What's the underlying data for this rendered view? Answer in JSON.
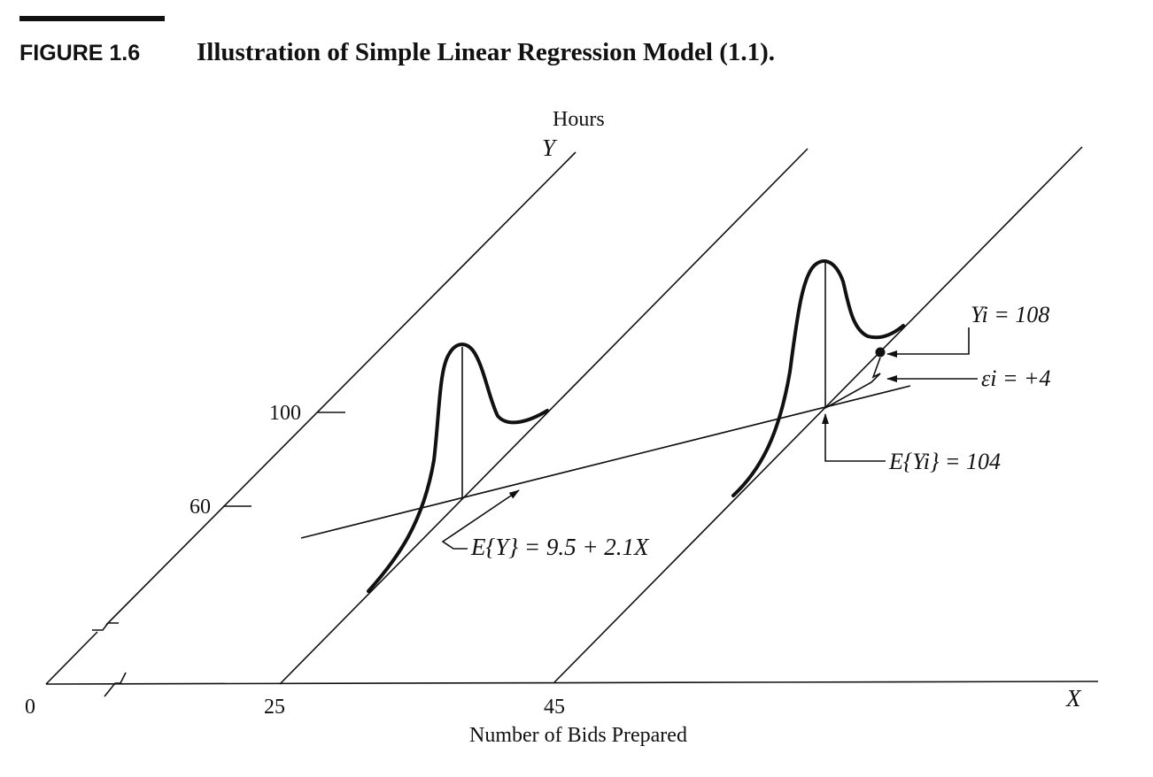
{
  "figure": {
    "label_prefix": "FIGURE 1.6",
    "title": "Illustration of Simple Linear Regression Model (1.1)."
  },
  "axes": {
    "y_axis_name": "Hours",
    "y_axis_symbol": "Y",
    "x_axis_symbol": "X",
    "x_axis_name": "Number of Bids Prepared",
    "x_origin_label": "0",
    "x_ticks": [
      "25",
      "45"
    ],
    "y_ticks": [
      "100",
      "60"
    ]
  },
  "annotations": {
    "regression_function": "E{Y} = 9.5 + 2.1X",
    "observation": "Yi = 108",
    "error_term": "εi = +4",
    "expected_value": "E{Yi} = 104"
  },
  "colors": {
    "ink": "#111111",
    "paper": "#ffffff"
  }
}
